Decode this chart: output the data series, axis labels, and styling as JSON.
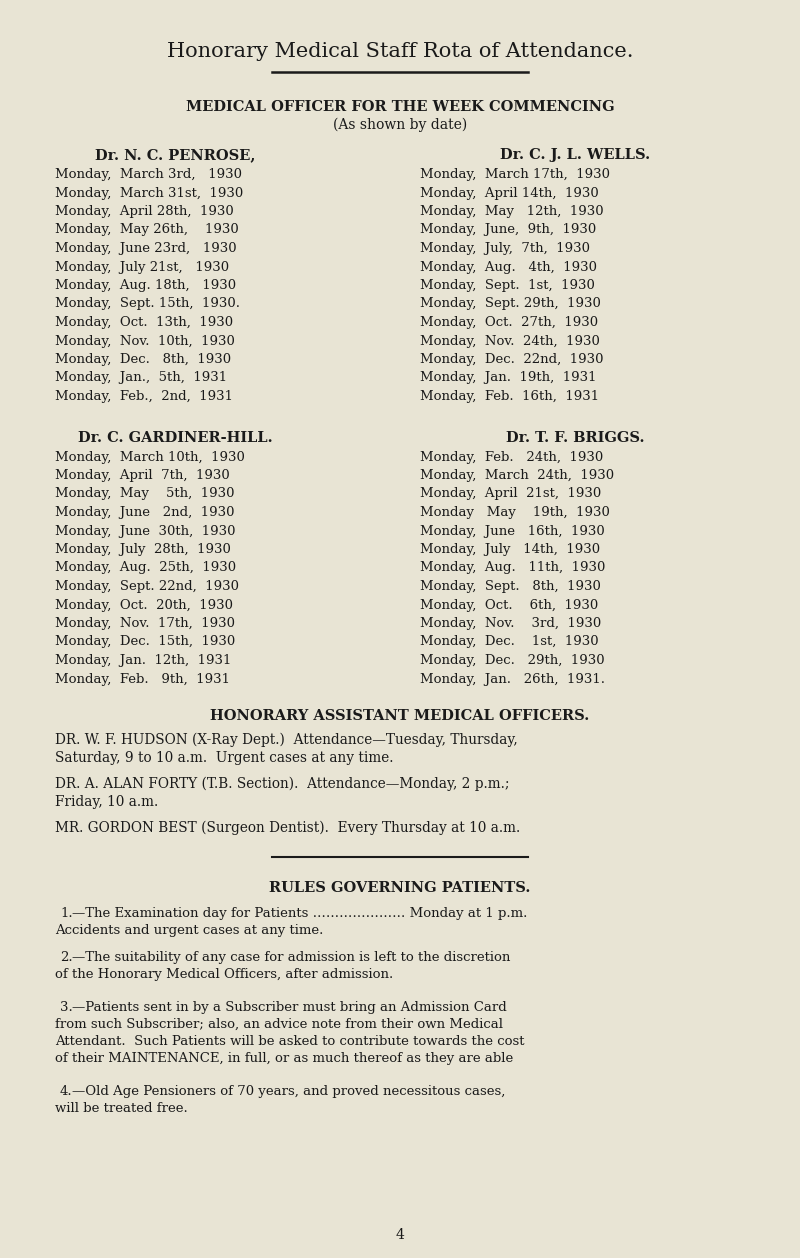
{
  "bg_color": "#e8e4d4",
  "title": "Honorary Medical Staff Rota of Attendance.",
  "section1_header": "MEDICAL OFFICER FOR THE WEEK COMMENCING",
  "section1_subheader": "(As shown by date)",
  "dr_penrose_header": "Dr. N. C. PENROSE,",
  "dr_wells_header": "Dr. C. J. L. WELLS.",
  "dr_gardiner_header": "Dr. C. GARDINER-HILL.",
  "dr_briggs_header": "Dr. T. F. BRIGGS.",
  "penrose_dates": [
    "Monday,  March 3rd,   1930",
    "Monday,  March 31st,  1930",
    "Monday,  April 28th,  1930",
    "Monday,  May 26th,    1930",
    "Monday,  June 23rd,   1930",
    "Monday,  July 21st,   1930",
    "Monday,  Aug. 18th,   1930",
    "Monday,  Sept. 15th,  1930.",
    "Monday,  Oct.  13th,  1930",
    "Monday,  Nov.  10th,  1930",
    "Monday,  Dec.   8th,  1930",
    "Monday,  Jan.,  5th,  1931",
    "Monday,  Feb.,  2nd,  1931"
  ],
  "wells_dates": [
    "Monday,  March 17th,  1930",
    "Monday,  April 14th,  1930",
    "Monday,  May   12th,  1930",
    "Monday,  June,  9th,  1930",
    "Monday,  July,  7th,  1930",
    "Monday,  Aug.   4th,  1930",
    "Monday,  Sept.  1st,  1930",
    "Monday,  Sept. 29th,  1930",
    "Monday,  Oct.  27th,  1930",
    "Monday,  Nov.  24th,  1930",
    "Monday,  Dec.  22nd,  1930",
    "Monday,  Jan.  19th,  1931",
    "Monday,  Feb.  16th,  1931"
  ],
  "gardiner_dates": [
    "Monday,  March 10th,  1930",
    "Monday,  April  7th,  1930",
    "Monday,  May    5th,  1930",
    "Monday,  June   2nd,  1930",
    "Monday,  June  30th,  1930",
    "Monday,  July  28th,  1930",
    "Monday,  Aug.  25th,  1930",
    "Monday,  Sept. 22nd,  1930",
    "Monday,  Oct.  20th,  1930",
    "Monday,  Nov.  17th,  1930",
    "Monday,  Dec.  15th,  1930",
    "Monday,  Jan.  12th,  1931",
    "Monday,  Feb.   9th,  1931"
  ],
  "briggs_dates": [
    "Monday,  Feb.   24th,  1930",
    "Monday,  March  24th,  1930",
    "Monday,  April  21st,  1930",
    "Monday   May    19th,  1930",
    "Monday,  June   16th,  1930",
    "Monday,  July   14th,  1930",
    "Monday,  Aug.   11th,  1930",
    "Monday,  Sept.   8th,  1930",
    "Monday,  Oct.    6th,  1930",
    "Monday,  Nov.    3rd,  1930",
    "Monday,  Dec.    1st,  1930",
    "Monday,  Dec.   29th,  1930",
    "Monday,  Jan.   26th,  1931."
  ],
  "honorary_header": "HONORARY ASSISTANT MEDICAL OFFICERS.",
  "hudson_line1": "DR. W. F. HUDSON (X-Ray Dept.)  Attendance—Tuesday, Thursday,",
  "hudson_line2": "Saturday, 9 to 10 a.m.  Urgent cases at any time.",
  "forty_line1": "DR. A. ALAN FORTY (T.B. Section).  Attendance—Monday, 2 p.m.;",
  "forty_line2": "Friday, 10 a.m.",
  "gordon_line": "MR. GORDON BEST (Surgeon Dentist).  Every Thursday at 10 a.m.",
  "rules_header": "RULES GOVERNING PATIENTS.",
  "rule1_indent": "1.",
  "rule1_text": "—The Examination day for Patients ………………… Monday at 1 p.m.",
  "rule1_line2": "Accidents and urgent cases at any time.",
  "rule2_indent": "2.",
  "rule2_text": "—The suitability of any case for admission is left to the discretion",
  "rule2_line2": "of the Honorary Medical Officers, after admission.",
  "rule3_indent": "3.",
  "rule3_text": "—Patients sent in by a Subscriber must bring an Admission Card",
  "rule3_line2": "from such Subscriber; also, an advice note from their own Medical",
  "rule3_line3": "Attendant.  Such Patients will be asked to contribute towards the cost",
  "rule3_line4": "of their MAINTENANCE, in full, or as much thereof as they are able",
  "rule4_indent": "4.",
  "rule4_text": "—Old Age Pensioners of 70 years, and proved necessitous cases,",
  "rule4_line2": "will be treated free.",
  "page_number": "4"
}
